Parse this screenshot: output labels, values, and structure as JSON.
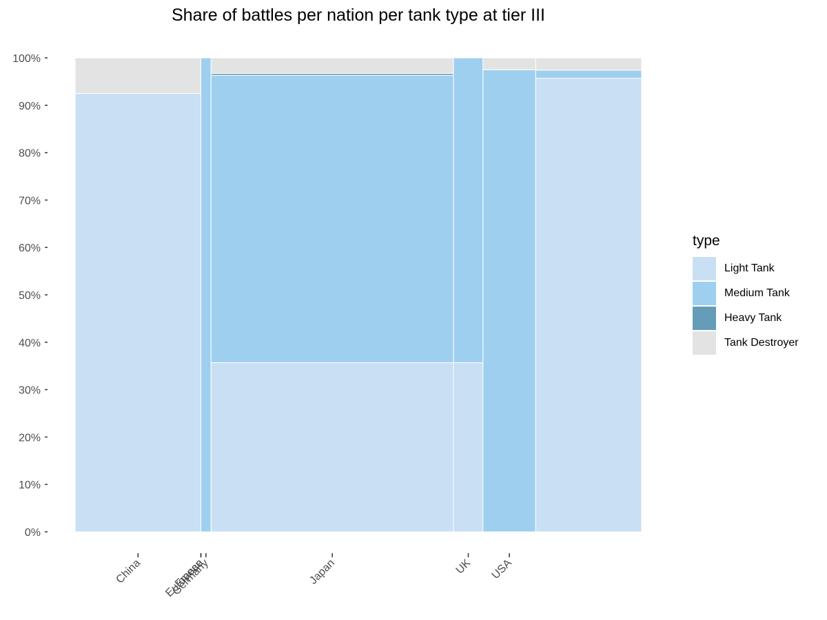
{
  "chart_data": {
    "type": "bar",
    "subtype": "mosaic (stacked 100% with variable widths)",
    "title": "Share of battles per nation per tank type at tier III",
    "xlabel": "",
    "ylabel": "",
    "ylim": [
      0,
      1
    ],
    "y_tick_labels": [
      "0%",
      "10%",
      "20%",
      "30%",
      "40%",
      "50%",
      "60%",
      "70%",
      "80%",
      "90%",
      "100%"
    ],
    "legend": {
      "title": "type",
      "position": "right"
    },
    "grid": false,
    "series": [
      {
        "name": "Light Tank",
        "color": "#c9dff3"
      },
      {
        "name": "Medium Tank",
        "color": "#9ecfef"
      },
      {
        "name": "Heavy Tank",
        "color": "#659db9"
      },
      {
        "name": "Tank Destroyer",
        "color": "#e3e3e3"
      }
    ],
    "nations": [
      {
        "label": "China",
        "width": 0.222,
        "shares": [
          0.925,
          0,
          0,
          0.075
        ]
      },
      {
        "label": "European",
        "width": 0.0,
        "shares": [
          0,
          0,
          0,
          0
        ]
      },
      {
        "label": "France",
        "width": 0.0,
        "shares": [
          0,
          0,
          0,
          0
        ]
      },
      {
        "label": "Germany",
        "width": 0.018,
        "shares": [
          0,
          1.0,
          0,
          0
        ]
      },
      {
        "label": "Japan",
        "width": 0.428,
        "shares": [
          0.357,
          0.606,
          0.004,
          0.033
        ]
      },
      {
        "label": "UK",
        "width": 0.052,
        "shares": [
          0.357,
          0.643,
          0,
          0
        ]
      },
      {
        "label": "USA",
        "width": 0.093,
        "shares": [
          0,
          0.975,
          0,
          0.025
        ]
      },
      {
        "label": "",
        "width": 0.187,
        "shares": [
          0.957,
          0.017,
          0,
          0.026
        ]
      }
    ]
  }
}
